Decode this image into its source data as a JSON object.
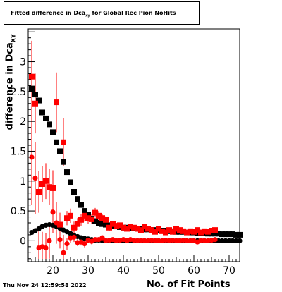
{
  "title": {
    "prefix": "Fitted difference in Dca",
    "subscript": "xy",
    "suffix": " for Global Rec Pion NoHits"
  },
  "timestamp": "Thu Nov 24 12:59:58 2022",
  "colors": {
    "black_series": "#000000",
    "red_series": "#ff0000"
  },
  "chart_data": {
    "type": "scatter",
    "title": "Fitted difference in Dca_xy for Global Rec Pion NoHits",
    "xlabel": "No. of Fit Points",
    "ylabel_main": "difference in Dca",
    "ylabel_sub": "XY",
    "xlim": [
      13,
      73
    ],
    "ylim": [
      -0.35,
      3.55
    ],
    "x_ticks": [
      20,
      30,
      40,
      50,
      60,
      70
    ],
    "y_ticks": [
      0,
      0.5,
      1,
      1.5,
      2,
      2.5,
      3
    ],
    "y_tick_labels": [
      "0",
      "0.5",
      "1",
      "1.5",
      "2",
      "2.5",
      "3"
    ],
    "grid": false,
    "series": [
      {
        "color": "#000000",
        "marker": "square",
        "x": [
          14,
          15,
          16,
          17,
          18,
          19,
          20,
          21,
          22,
          23,
          24,
          25,
          26,
          27,
          28,
          29,
          30,
          31,
          32,
          33,
          34,
          35,
          36,
          37,
          38,
          39,
          40,
          41,
          42,
          43,
          44,
          45,
          46,
          47,
          48,
          49,
          50,
          51,
          52,
          53,
          54,
          55,
          56,
          57,
          58,
          59,
          60,
          61,
          62,
          63,
          64,
          65,
          66,
          67,
          68,
          69,
          70,
          71,
          72,
          73
        ],
        "y": [
          2.55,
          2.45,
          2.35,
          2.15,
          2.05,
          1.95,
          1.82,
          1.65,
          1.5,
          1.32,
          1.15,
          0.98,
          0.82,
          0.7,
          0.6,
          0.5,
          0.43,
          0.37,
          0.33,
          0.3,
          0.28,
          0.27,
          0.26,
          0.25,
          0.24,
          0.23,
          0.22,
          0.22,
          0.21,
          0.21,
          0.2,
          0.2,
          0.19,
          0.19,
          0.18,
          0.18,
          0.18,
          0.17,
          0.17,
          0.16,
          0.16,
          0.15,
          0.15,
          0.15,
          0.14,
          0.14,
          0.14,
          0.13,
          0.13,
          0.13,
          0.12,
          0.12,
          0.12,
          0.12,
          0.11,
          0.11,
          0.11,
          0.11,
          0.1,
          0.1
        ],
        "yerr": []
      },
      {
        "color": "#000000",
        "marker": "circle",
        "x": [
          14,
          15,
          16,
          17,
          18,
          19,
          20,
          21,
          22,
          23,
          24,
          25,
          26,
          27,
          28,
          29,
          30,
          31,
          32,
          33,
          34,
          35,
          36,
          37,
          38,
          39,
          40,
          41,
          42,
          43,
          44,
          45,
          46,
          47,
          48,
          49,
          50,
          51,
          52,
          53,
          54,
          55,
          56,
          57,
          58,
          59,
          60,
          61,
          62,
          63,
          64,
          65,
          66,
          67,
          68,
          69,
          70,
          71,
          72,
          73
        ],
        "y": [
          0.14,
          0.17,
          0.2,
          0.24,
          0.26,
          0.27,
          0.26,
          0.24,
          0.21,
          0.18,
          0.15,
          0.12,
          0.09,
          0.07,
          0.05,
          0.04,
          0.03,
          0.02,
          0.01,
          0.01,
          0,
          0,
          0,
          0,
          0,
          0,
          0,
          0,
          0,
          0,
          0,
          0,
          0,
          0,
          0,
          0,
          0,
          0,
          0,
          0,
          0,
          0,
          0,
          0,
          0,
          0,
          0,
          0,
          0,
          0,
          0,
          0,
          0,
          0,
          0,
          0,
          0,
          0,
          0,
          0
        ],
        "yerr": []
      },
      {
        "color": "#ff0000",
        "marker": "square",
        "x": [
          14,
          15,
          16,
          17,
          18,
          19,
          20,
          21,
          22,
          23,
          24,
          25,
          26,
          27,
          28,
          29,
          30,
          31,
          32,
          33,
          34,
          35,
          36,
          37,
          38,
          39,
          40,
          41,
          42,
          43,
          44,
          45,
          46,
          47,
          48,
          49,
          50,
          51,
          52,
          53,
          54,
          55,
          56,
          57,
          58,
          59,
          60,
          61,
          62,
          63,
          64,
          65,
          66
        ],
        "y": [
          2.75,
          2.3,
          0.82,
          0.95,
          1,
          0.9,
          0.88,
          2.32,
          0.27,
          1.65,
          0.38,
          0.42,
          0.22,
          0.28,
          0.35,
          0.42,
          0.38,
          0.36,
          0.47,
          0.42,
          0.38,
          0.35,
          0.22,
          0.28,
          0.25,
          0.26,
          0.22,
          0.2,
          0.24,
          0.22,
          0.2,
          0.18,
          0.24,
          0.2,
          0.18,
          0.15,
          0.2,
          0.16,
          0.14,
          0.18,
          0.15,
          0.2,
          0.18,
          0.16,
          0.14,
          0.16,
          0.15,
          0.18,
          0.14,
          0.16,
          0.15,
          0.17,
          0.18
        ],
        "yerr": [
          0.6,
          0.5,
          0.35,
          0.3,
          0.3,
          0.3,
          0.3,
          0.5,
          0.2,
          0.4,
          0.12,
          0.12,
          0.1,
          0.1,
          0.1,
          0.1,
          0.1,
          0.08,
          0.08,
          0.08,
          0.06,
          0.06,
          0.05,
          0.05,
          0.05,
          0.04,
          0.04,
          0.04,
          0.03,
          0.03,
          0.03,
          0.03,
          0.03,
          0.03,
          0.03,
          0.03,
          0.03,
          0.03,
          0.03,
          0.03,
          0.03,
          0.03,
          0.03,
          0.03,
          0.03,
          0.03,
          0.03,
          0.03,
          0.03,
          0.03,
          0.03,
          0.03,
          0.03
        ]
      },
      {
        "color": "#ff0000",
        "marker": "circle",
        "x": [
          14,
          15,
          16,
          17,
          18,
          19,
          20,
          21,
          22,
          23,
          24,
          25,
          26,
          27,
          28,
          29,
          30,
          31,
          32,
          33,
          34,
          35,
          36,
          37,
          38,
          39,
          40,
          41,
          42,
          43,
          44,
          45,
          46,
          47,
          48,
          49,
          50,
          51,
          52,
          53,
          54,
          55,
          56,
          57,
          58,
          59,
          60,
          61,
          62,
          63,
          64,
          65,
          66
        ],
        "y": [
          1.4,
          1.05,
          -0.12,
          -0.1,
          -0.12,
          0,
          0.48,
          0.3,
          0.02,
          -0.2,
          -0.05,
          0.05,
          0.06,
          -0.03,
          -0.02,
          -0.05,
          0.01,
          -0.01,
          0.02,
          0.02,
          0.05,
          0.0,
          0.01,
          0.02,
          0.0,
          0.01,
          0.02,
          0.0,
          0.02,
          0.01,
          0.0,
          0.01,
          0.0,
          0.0,
          0.01,
          0.0,
          0.0,
          0.0,
          0.01,
          0.0,
          0.01,
          0.0,
          0.0,
          0.01,
          0.0,
          0.0,
          0.0,
          -0.02,
          0.01,
          0.0,
          0.0,
          0.01,
          0.02
        ],
        "yerr": [
          0.8,
          0.6,
          0.3,
          0.25,
          0.25,
          0.3,
          0.35,
          0.35,
          0.15,
          0.3,
          0.1,
          0.08,
          0.08,
          0.06,
          0.06,
          0.06,
          0.05,
          0.05,
          0.04,
          0.04,
          0.04,
          0.03,
          0.03,
          0.03,
          0.03,
          0.03,
          0.03,
          0.02,
          0.02,
          0.02,
          0.02,
          0.02,
          0.02,
          0.02,
          0.02,
          0.02,
          0.02,
          0.02,
          0.02,
          0.02,
          0.02,
          0.02,
          0.02,
          0.02,
          0.02,
          0.02,
          0.02,
          0.02,
          0.02,
          0.02,
          0.02,
          0.02,
          0.02
        ]
      }
    ]
  }
}
